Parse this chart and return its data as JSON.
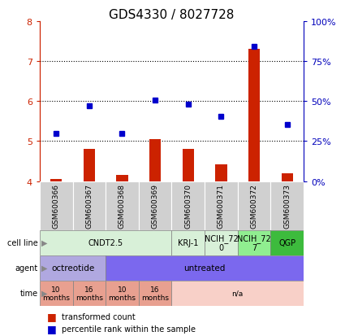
{
  "title": "GDS4330 / 8027728",
  "samples": [
    "GSM600366",
    "GSM600367",
    "GSM600368",
    "GSM600369",
    "GSM600370",
    "GSM600371",
    "GSM600372",
    "GSM600373"
  ],
  "transformed_count": [
    4.05,
    4.8,
    4.15,
    5.05,
    4.8,
    4.42,
    7.3,
    4.2
  ],
  "percentile_rank": [
    5.2,
    5.88,
    5.2,
    6.02,
    5.92,
    5.62,
    7.37,
    5.42
  ],
  "ylim": [
    4.0,
    8.0
  ],
  "yticks_left": [
    4,
    5,
    6,
    7,
    8
  ],
  "yticks_right": [
    0,
    25,
    50,
    75,
    100
  ],
  "cell_line_groups": [
    {
      "label": "CNDT2.5",
      "start": 0,
      "end": 4,
      "color": "#d8f0d8"
    },
    {
      "label": "KRJ-1",
      "start": 4,
      "end": 5,
      "color": "#d8f0d8"
    },
    {
      "label": "NCIH_72\n0",
      "start": 5,
      "end": 6,
      "color": "#d8f0d8"
    },
    {
      "label": "NCIH_72\n7",
      "start": 6,
      "end": 7,
      "color": "#90ee90"
    },
    {
      "label": "QGP",
      "start": 7,
      "end": 8,
      "color": "#3dbb3d"
    }
  ],
  "agent_groups": [
    {
      "label": "octreotide",
      "start": 0,
      "end": 2,
      "color": "#b0a8e0"
    },
    {
      "label": "untreated",
      "start": 2,
      "end": 8,
      "color": "#7b68ee"
    }
  ],
  "time_groups": [
    {
      "label": "10\nmonths",
      "start": 0,
      "end": 1,
      "color": "#e8a090"
    },
    {
      "label": "16\nmonths",
      "start": 1,
      "end": 2,
      "color": "#e8a090"
    },
    {
      "label": "10\nmonths",
      "start": 2,
      "end": 3,
      "color": "#e8a090"
    },
    {
      "label": "16\nmonths",
      "start": 3,
      "end": 4,
      "color": "#e8a090"
    },
    {
      "label": "n/a",
      "start": 4,
      "end": 8,
      "color": "#f8d0c8"
    }
  ],
  "bar_color": "#cc2200",
  "dot_color": "#0000cc",
  "left_axis_color": "#cc2200",
  "right_axis_color": "#0000bb",
  "sample_box_color": "#d0d0d0",
  "title_fontsize": 11,
  "bar_width": 0.35,
  "dot_size": 5
}
